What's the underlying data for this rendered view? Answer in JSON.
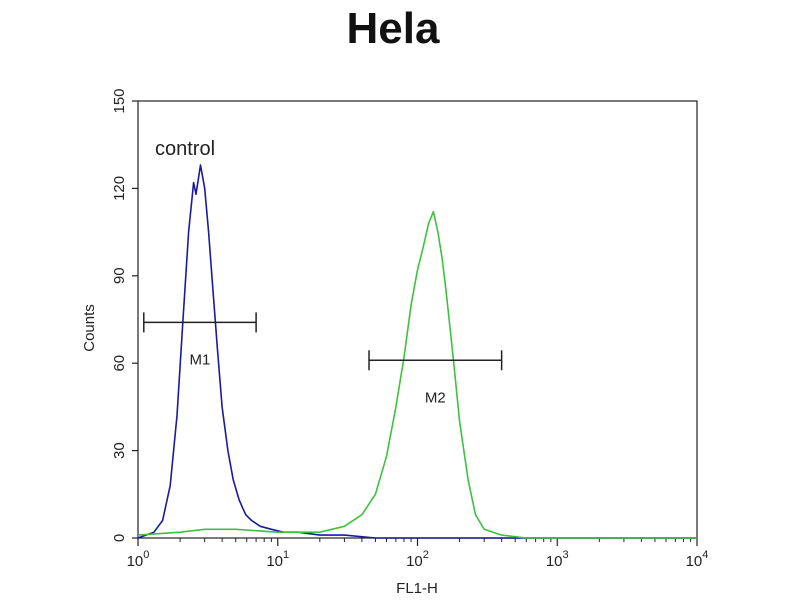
{
  "chart_data": {
    "type": "line",
    "title": "Hela",
    "xlabel": "FL1-H",
    "ylabel": "Counts",
    "x_scale": "log",
    "xlim": [
      1,
      10000
    ],
    "ylim": [
      0,
      150
    ],
    "x_ticks": [
      {
        "value": 1,
        "base": "10",
        "exp": "0"
      },
      {
        "value": 10,
        "base": "10",
        "exp": "1"
      },
      {
        "value": 100,
        "base": "10",
        "exp": "2"
      },
      {
        "value": 1000,
        "base": "10",
        "exp": "3"
      },
      {
        "value": 10000,
        "base": "10",
        "exp": "4"
      }
    ],
    "y_ticks": [
      0,
      30,
      60,
      90,
      120,
      150
    ],
    "grid": false,
    "annotation": "control",
    "series": [
      {
        "name": "control",
        "color": "#1a1aa0",
        "x": [
          1.0,
          1.3,
          1.5,
          1.7,
          1.9,
          2.1,
          2.3,
          2.5,
          2.6,
          2.8,
          2.9,
          3.0,
          3.2,
          3.4,
          3.7,
          4.0,
          4.4,
          4.8,
          5.3,
          5.9,
          6.5,
          7.5,
          9.0,
          11,
          14,
          20,
          30,
          50,
          100,
          1000,
          10000
        ],
        "y": [
          0,
          2,
          6,
          18,
          42,
          75,
          105,
          122,
          118,
          128,
          124,
          120,
          105,
          88,
          65,
          45,
          30,
          20,
          13,
          8,
          6,
          4,
          3,
          2,
          2,
          1,
          1,
          0,
          0,
          0,
          0
        ]
      },
      {
        "name": "",
        "color": "#3ec23e",
        "x": [
          1.0,
          2.0,
          3.0,
          5.0,
          10,
          20,
          30,
          40,
          50,
          60,
          70,
          80,
          90,
          100,
          110,
          120,
          130,
          140,
          150,
          160,
          180,
          200,
          230,
          260,
          300,
          400,
          600,
          1000,
          10000
        ],
        "y": [
          1,
          2,
          3,
          3,
          2,
          2,
          4,
          8,
          15,
          28,
          45,
          62,
          80,
          92,
          100,
          108,
          112,
          105,
          96,
          85,
          62,
          40,
          20,
          8,
          3,
          1,
          0,
          0,
          0
        ]
      }
    ],
    "markers": [
      {
        "label": "M1",
        "x_start": 1.1,
        "x_end": 7.0,
        "y": 74
      },
      {
        "label": "M2",
        "x_start": 45,
        "x_end": 400,
        "y": 61
      }
    ]
  }
}
